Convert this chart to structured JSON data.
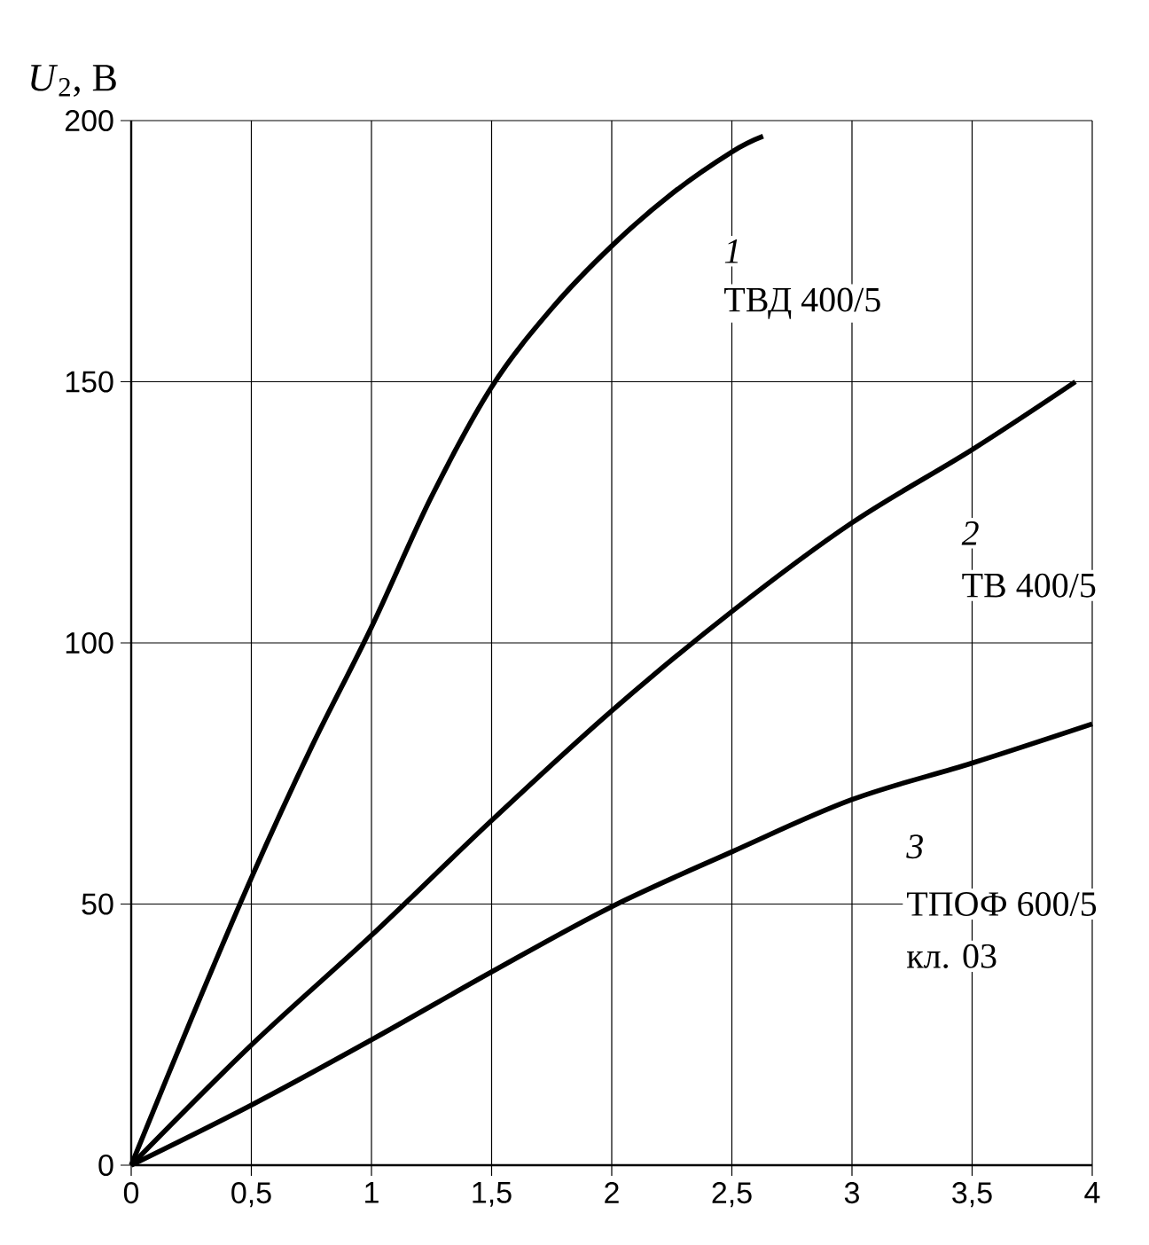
{
  "chart_data": {
    "type": "line",
    "ylabel": "*U*$_{2}$, В",
    "xlim": [
      0,
      4
    ],
    "ylim": [
      0,
      200
    ],
    "xticks": [
      0,
      {
        "value": 0.5,
        "label": "0,5"
      },
      1,
      {
        "value": 1.5,
        "label": "1,5"
      },
      2,
      {
        "value": 2.5,
        "label": "2,5"
      },
      3,
      {
        "value": 3.5,
        "label": "3,5"
      },
      4
    ],
    "yticks": [
      0,
      50,
      100,
      150,
      200
    ],
    "grid": true,
    "marker": "none",
    "line_style": "solid",
    "series": [
      {
        "color": "#000000",
        "x": [
          0,
          0.25,
          0.5,
          0.75,
          1,
          1.25,
          1.5,
          1.75,
          2,
          2.25,
          2.5,
          2.63
        ],
        "values": [
          0,
          28,
          55,
          80,
          103,
          128,
          149,
          164,
          176,
          186,
          194,
          197
        ]
      },
      {
        "color": "#000000",
        "x": [
          0,
          0.5,
          1,
          1.5,
          2,
          2.5,
          3,
          3.5,
          3.93
        ],
        "values": [
          0,
          23,
          44,
          66,
          87,
          106,
          123,
          137,
          150
        ]
      },
      {
        "color": "#000000",
        "x": [
          0,
          0.5,
          1,
          1.5,
          2,
          2.5,
          3,
          3.5,
          4
        ],
        "values": [
          0,
          11.5,
          24,
          37,
          49.5,
          60,
          70,
          77,
          84.5
        ]
      }
    ],
    "annotations": [
      "1",
      "ТВД 400/5",
      "2",
      "ТВ 400/5",
      "3",
      "ТПОФ 600/5",
      "кл. 03"
    ]
  }
}
